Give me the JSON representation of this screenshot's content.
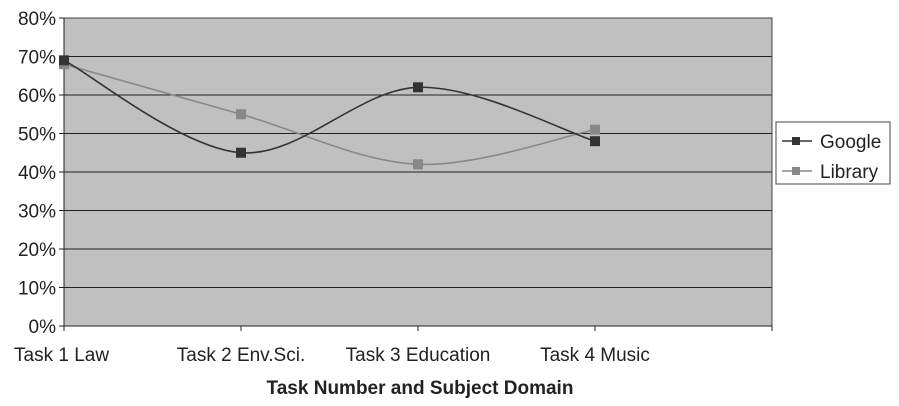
{
  "chart_data": {
    "type": "line",
    "title": "",
    "xlabel": "Task Number and Subject Domain",
    "ylabel": "",
    "categories": [
      "Task 1 Law",
      "Task 2 Env.Sci.",
      "Task 3 Education",
      "Task 4 Music"
    ],
    "y_tick_labels": [
      "0%",
      "10%",
      "20%",
      "30%",
      "40%",
      "50%",
      "60%",
      "70%",
      "80%"
    ],
    "ylim": [
      0,
      80
    ],
    "y_unit": "%",
    "grid": true,
    "smoothed": true,
    "legend_position": "right",
    "plot_background": "#c0c0c0",
    "series": [
      {
        "name": "Google",
        "values": [
          69,
          45,
          62,
          48
        ],
        "color": "#333333",
        "marker": "square"
      },
      {
        "name": "Library",
        "values": [
          68,
          55,
          42,
          51
        ],
        "color": "#888888",
        "marker": "square"
      }
    ]
  }
}
